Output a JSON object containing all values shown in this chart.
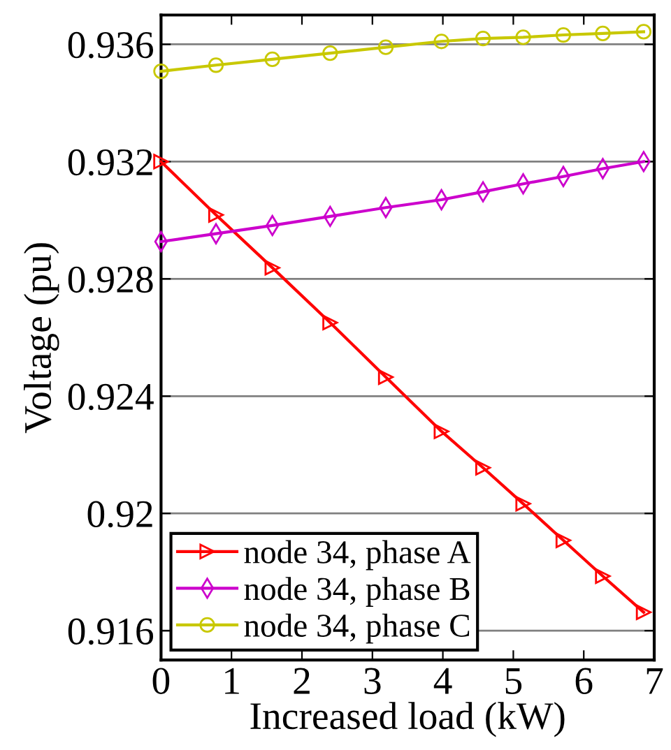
{
  "chart_data": {
    "type": "line",
    "xlabel": "Increased load (kW)",
    "ylabel": "Voltage (pu)",
    "x": [
      0,
      0.78,
      1.58,
      2.4,
      3.19,
      3.98,
      4.57,
      5.14,
      5.71,
      6.27,
      6.85
    ],
    "series": [
      {
        "name": "node 34, phase A",
        "color": "#ff0000",
        "marker": "triangle",
        "values": [
          0.932,
          0.93018,
          0.92838,
          0.92651,
          0.92465,
          0.9228,
          0.92156,
          0.92033,
          0.91908,
          0.91786,
          0.91663
        ]
      },
      {
        "name": "node 34, phase B",
        "color": "#cc00cc",
        "marker": "diamond",
        "values": [
          0.92927,
          0.92954,
          0.92982,
          0.93013,
          0.93043,
          0.9307,
          0.93097,
          0.93124,
          0.93149,
          0.93176,
          0.932
        ]
      },
      {
        "name": "node 34, phase C",
        "color": "#c8c800",
        "marker": "circle",
        "values": [
          0.93508,
          0.93529,
          0.93549,
          0.9357,
          0.9359,
          0.9361,
          0.9362,
          0.93624,
          0.93632,
          0.93637,
          0.93643
        ]
      }
    ],
    "xlim": [
      0,
      7
    ],
    "xticks": [
      0,
      1,
      2,
      3,
      4,
      5,
      6,
      7
    ],
    "ylim": [
      0.915,
      0.937
    ],
    "yticks": [
      0.916,
      0.92,
      0.924,
      0.928,
      0.932,
      0.936
    ],
    "grid": "y",
    "legend": "bottom left",
    "line_style": "solid"
  }
}
